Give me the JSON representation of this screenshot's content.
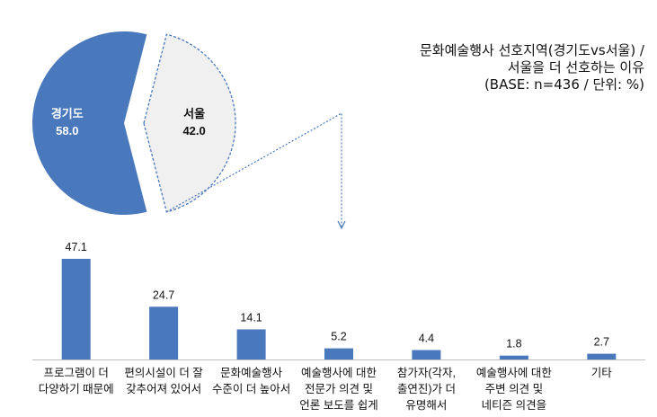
{
  "title_lines": [
    "문화예술행사 선호지역(경기도vs서울) /",
    "서울을 더 선호하는 이유",
    "(BASE: n=436 / 단위: %)"
  ],
  "colors": {
    "primary": "#4a78bc",
    "secondary": "#f0f0f0",
    "outline": "#4a78bc",
    "text": "#111111"
  },
  "chart_data": [
    {
      "type": "pie",
      "slices": [
        {
          "label": "경기도",
          "value": 58.0,
          "value_label": "58.0",
          "color": "#4a78bc"
        },
        {
          "label": "서울",
          "value": 42.0,
          "value_label": "42.0",
          "color": "#f0f0f0",
          "exploded": true
        }
      ]
    },
    {
      "type": "bar",
      "categories": [
        [
          "프로그램이 더",
          "다양하기 때문에"
        ],
        [
          "편의시설이 더 잘",
          "갖추어져 있어서"
        ],
        [
          "문화예술행사",
          "수준이 더 높아서"
        ],
        [
          "예술행사에 대한",
          "전문가 의견 및",
          "언론 보도를 쉽게"
        ],
        [
          "참가자(각자,",
          "출연진)가 더",
          "유명해서"
        ],
        [
          "예술행사에 대한",
          "주변 의견 및",
          "네티즌 의견을"
        ],
        [
          "기타"
        ]
      ],
      "values": [
        47.1,
        24.7,
        14.1,
        5.2,
        4.4,
        1.8,
        2.7
      ],
      "value_labels": [
        "47.1",
        "24.7",
        "14.1",
        "5.2",
        "4.4",
        "1.8",
        "2.7"
      ],
      "ylim": [
        0,
        50
      ],
      "color": "#4a78bc",
      "grid": false
    }
  ]
}
